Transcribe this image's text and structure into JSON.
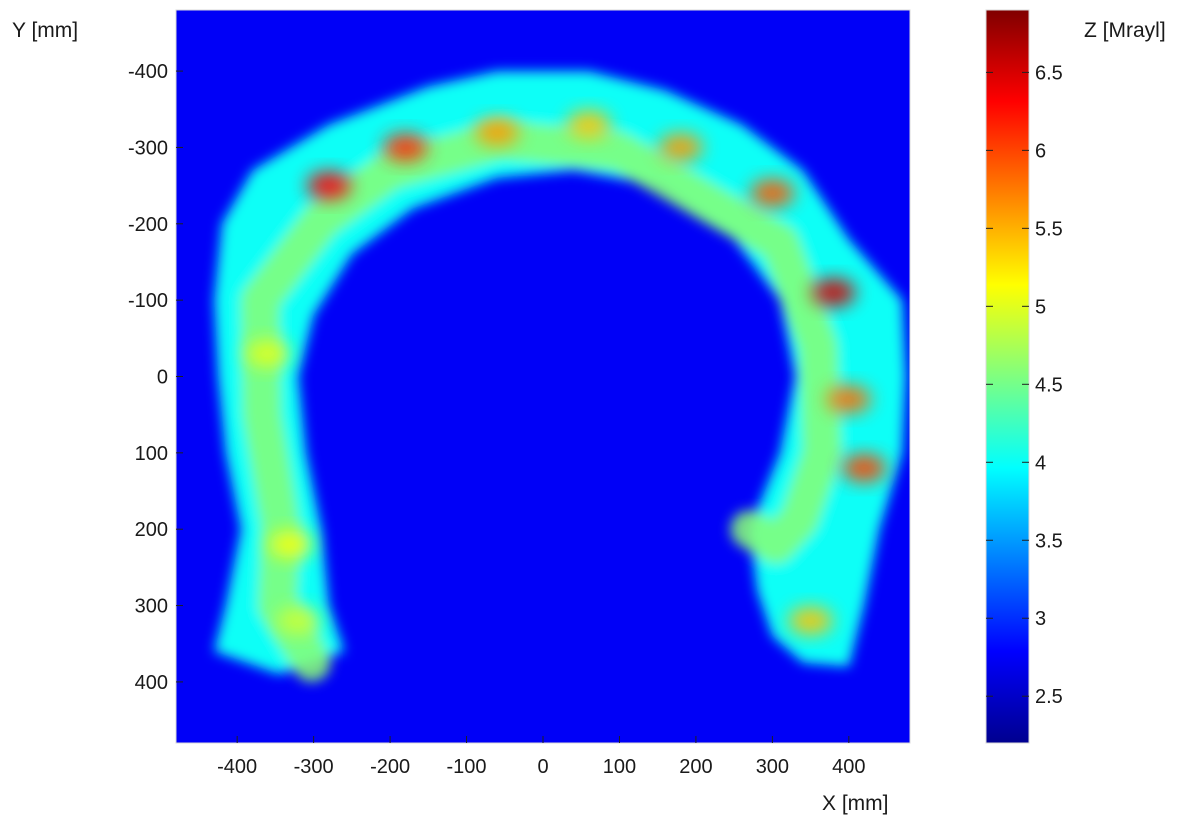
{
  "chart_data": {
    "type": "heatmap",
    "title": "",
    "xlabel": "X [mm]",
    "ylabel": "Y [mm]",
    "colorbar_label": "Z [Mrayl]",
    "xlim": [
      -480,
      480
    ],
    "ylim": [
      -480,
      480
    ],
    "y_direction": "reversed",
    "x_ticks": [
      -400,
      -300,
      -200,
      -100,
      0,
      100,
      200,
      300,
      400
    ],
    "x_tick_labels": [
      "-400",
      "-300",
      "-200",
      "-100",
      "0",
      "100",
      "200",
      "300",
      "400"
    ],
    "y_ticks": [
      -400,
      -300,
      -200,
      -100,
      0,
      100,
      200,
      300,
      400
    ],
    "y_tick_labels": [
      "-400",
      "-300",
      "-200",
      "-100",
      "0",
      "100",
      "200",
      "300",
      "400"
    ],
    "colorbar_range": [
      2.2,
      6.9
    ],
    "colorbar_ticks": [
      2.5,
      3,
      3.5,
      4,
      4.5,
      5,
      5.5,
      6,
      6.5
    ],
    "colorbar_tick_labels": [
      "2.5",
      "3",
      "3.5",
      "4",
      "4.5",
      "5",
      "5.5",
      "6",
      "6.5"
    ],
    "colormap": "jet",
    "background_value": 2.75,
    "grid": false,
    "structure": {
      "shape": "horseshoe",
      "outer_boundary": [
        [
          -345,
          390
        ],
        [
          -430,
          360
        ],
        [
          -415,
          300
        ],
        [
          -395,
          200
        ],
        [
          -415,
          100
        ],
        [
          -425,
          0
        ],
        [
          -430,
          -100
        ],
        [
          -420,
          -200
        ],
        [
          -380,
          -270
        ],
        [
          -280,
          -330
        ],
        [
          -150,
          -380
        ],
        [
          -60,
          -400
        ],
        [
          60,
          -400
        ],
        [
          160,
          -375
        ],
        [
          260,
          -330
        ],
        [
          340,
          -270
        ],
        [
          400,
          -180
        ],
        [
          470,
          -100
        ],
        [
          475,
          0
        ],
        [
          470,
          100
        ],
        [
          440,
          200
        ],
        [
          420,
          300
        ],
        [
          400,
          380
        ],
        [
          340,
          375
        ],
        [
          300,
          340
        ],
        [
          280,
          280
        ],
        [
          270,
          200
        ]
      ],
      "inner_boundary": [
        [
          270,
          200
        ],
        [
          310,
          100
        ],
        [
          330,
          0
        ],
        [
          310,
          -100
        ],
        [
          250,
          -180
        ],
        [
          150,
          -250
        ],
        [
          40,
          -270
        ],
        [
          -60,
          -260
        ],
        [
          -170,
          -220
        ],
        [
          -250,
          -160
        ],
        [
          -300,
          -80
        ],
        [
          -320,
          0
        ],
        [
          -310,
          100
        ],
        [
          -290,
          200
        ],
        [
          -280,
          300
        ],
        [
          -260,
          360
        ]
      ],
      "wall_value_typical": 4.0,
      "wall_value_mid": 4.6,
      "hotspots": [
        {
          "x": -280,
          "y": -250,
          "value": 6.3
        },
        {
          "x": -180,
          "y": -300,
          "value": 6.1
        },
        {
          "x": -60,
          "y": -320,
          "value": 5.6
        },
        {
          "x": 60,
          "y": -330,
          "value": 5.4
        },
        {
          "x": 180,
          "y": -300,
          "value": 5.6
        },
        {
          "x": 300,
          "y": -240,
          "value": 5.9
        },
        {
          "x": 380,
          "y": -110,
          "value": 6.5
        },
        {
          "x": 400,
          "y": 30,
          "value": 5.8
        },
        {
          "x": 420,
          "y": 120,
          "value": 6.0
        },
        {
          "x": -360,
          "y": -30,
          "value": 5.0
        },
        {
          "x": -330,
          "y": 220,
          "value": 5.1
        },
        {
          "x": 350,
          "y": 320,
          "value": 5.4
        },
        {
          "x": -320,
          "y": 320,
          "value": 4.9
        }
      ]
    }
  }
}
